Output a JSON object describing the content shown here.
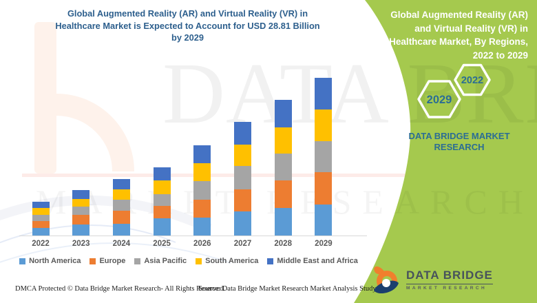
{
  "title": {
    "lines": [
      "Global Augmented Reality (AR) and Virtual Reality (VR) in",
      "Healthcare Market is Expected to Account for USD 28.81 Billion",
      "by 2029"
    ]
  },
  "panel": {
    "heading_lines": [
      "Global Augmented Reality (AR)",
      "and Virtual Reality (VR) in",
      "Healthcare Market, By Regions,",
      "2022 to 2029"
    ],
    "hexagon_labels": {
      "small": "2022",
      "large": "2029"
    },
    "brand_lines": [
      "DATA BRIDGE MARKET",
      "RESEARCH"
    ],
    "background_color": "#a5c94e",
    "text_color": "#2b6d94"
  },
  "logo": {
    "name": "DATA BRIDGE",
    "subtitle": "MARKET RESEARCH"
  },
  "footer": {
    "dmca": "DMCA Protected © Data Bridge Market Research- All Rights Reserved.",
    "source": "Source: Data Bridge Market Research Market Analysis Study 2022"
  },
  "watermark": {
    "big_text": "DATA BRID",
    "row_text": "MARKET RESEARCH"
  },
  "chart_data": {
    "type": "bar",
    "stacked": true,
    "title": "Global Augmented Reality (AR) and Virtual Reality (VR) in Healthcare Market is Expected to Account for USD 28.81 Billion by 2029",
    "unit": "USD Billion",
    "xlabel": "",
    "ylabel": "",
    "grid": false,
    "legend_position": "bottom",
    "categories": [
      "2022",
      "2023",
      "2024",
      "2025",
      "2026",
      "2027",
      "2028",
      "2029"
    ],
    "series": [
      {
        "name": "North America",
        "color": "#5B9BD5",
        "values": [
          1.38,
          2.04,
          2.17,
          3.14,
          3.3,
          4.39,
          5.02,
          5.68
        ]
      },
      {
        "name": "Europe",
        "color": "#ED7D31",
        "values": [
          1.25,
          1.79,
          2.38,
          2.3,
          3.26,
          4.1,
          5.02,
          5.86
        ]
      },
      {
        "name": "Asia Pacific",
        "color": "#A5A5A5",
        "values": [
          1.25,
          1.47,
          2.09,
          2.17,
          3.35,
          4.3,
          4.94,
          5.73
        ]
      },
      {
        "name": "South America",
        "color": "#FFC000",
        "values": [
          1.25,
          1.38,
          1.79,
          2.43,
          3.26,
          3.85,
          4.8,
          5.77
        ]
      },
      {
        "name": "Middle East and Africa",
        "color": "#4472C4",
        "values": [
          1.05,
          1.63,
          1.88,
          2.38,
          3.3,
          4.1,
          5.02,
          5.77
        ]
      }
    ],
    "totals": [
      6.18,
      8.31,
      10.31,
      12.42,
      16.47,
      20.74,
      24.8,
      28.81
    ]
  }
}
